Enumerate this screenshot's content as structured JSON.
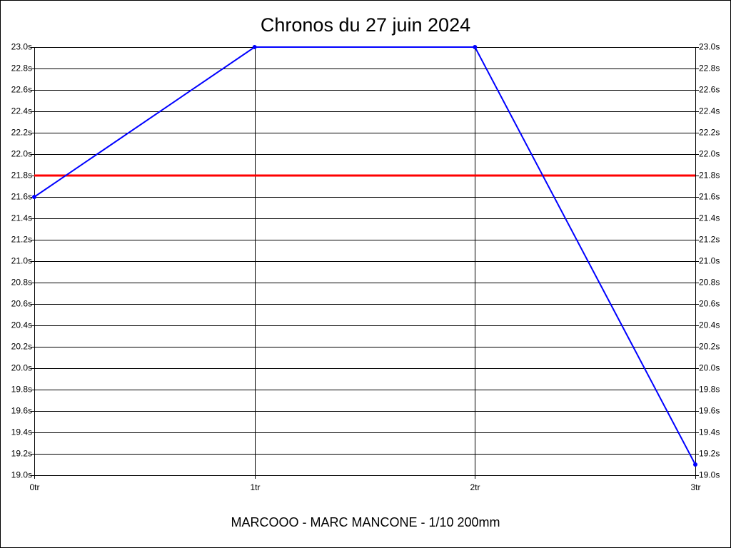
{
  "chart_data": {
    "type": "line",
    "title": "Chronos du 27 juin 2024",
    "x_label": "MARCOOO - MARC MANCONE - 1/10 200mm",
    "x": [
      0,
      1,
      2,
      3
    ],
    "series": [
      {
        "color": "#0000ff",
        "values": [
          21.6,
          23.0,
          23.0,
          19.1
        ]
      }
    ],
    "reference_line": {
      "value": 21.8,
      "color": "#ff0000"
    },
    "xlim": [
      0,
      3
    ],
    "xticks": [
      {
        "value": 0,
        "label": "0tr"
      },
      {
        "value": 1,
        "label": "1tr"
      },
      {
        "value": 2,
        "label": "2tr"
      },
      {
        "value": 3,
        "label": "3tr"
      }
    ],
    "ylim": [
      19.0,
      23.0
    ],
    "yticks": [
      {
        "value": 19.0,
        "label": "19.0s"
      },
      {
        "value": 19.2,
        "label": "19.2s"
      },
      {
        "value": 19.4,
        "label": "19.4s"
      },
      {
        "value": 19.6,
        "label": "19.6s"
      },
      {
        "value": 19.8,
        "label": "19.8s"
      },
      {
        "value": 20.0,
        "label": "20.0s"
      },
      {
        "value": 20.2,
        "label": "20.2s"
      },
      {
        "value": 20.4,
        "label": "20.4s"
      },
      {
        "value": 20.6,
        "label": "20.6s"
      },
      {
        "value": 20.8,
        "label": "20.8s"
      },
      {
        "value": 21.0,
        "label": "21.0s"
      },
      {
        "value": 21.2,
        "label": "21.2s"
      },
      {
        "value": 21.4,
        "label": "21.4s"
      },
      {
        "value": 21.6,
        "label": "21.6s"
      },
      {
        "value": 21.8,
        "label": "21.8s"
      },
      {
        "value": 22.0,
        "label": "22.0s"
      },
      {
        "value": 22.2,
        "label": "22.2s"
      },
      {
        "value": 22.4,
        "label": "22.4s"
      },
      {
        "value": 22.6,
        "label": "22.6s"
      },
      {
        "value": 22.8,
        "label": "22.8s"
      },
      {
        "value": 23.0,
        "label": "23.0s"
      }
    ],
    "grid": true
  }
}
